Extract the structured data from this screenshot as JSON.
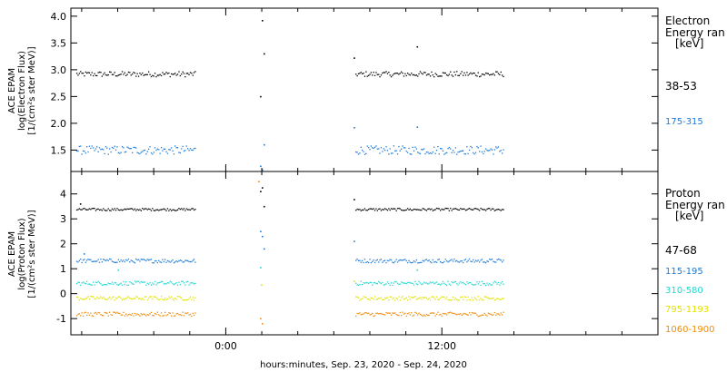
{
  "xlabel": "hours:minutes, Sep. 23, 2020 - Sep. 24, 2020",
  "x_ticks": [
    "0:00",
    "12:00"
  ],
  "colors": {
    "black": "#000000",
    "blue": "#1c7ad8",
    "cyan": "#22d8d0",
    "yellow": "#e2e200",
    "orange": "#f08c10"
  },
  "chart_data": [
    {
      "type": "scatter",
      "panel": "electron",
      "ylabel": [
        "ACE EPAM",
        "log(Electron Flux)",
        "[1/(cm²s ster MeV)]"
      ],
      "ylim": [
        1.1,
        4.15
      ],
      "y_ticks": [
        "1.5",
        "2.0",
        "2.5",
        "3.0",
        "3.5",
        "4.0"
      ],
      "legend_title": [
        "Electron",
        "Energy ran",
        "[keV]"
      ],
      "series": [
        {
          "name": "38-53",
          "color": "black",
          "level": 2.92,
          "segments": [
            [
              -8.3,
              -1.7
            ],
            [
              7.2,
              15.4
            ]
          ],
          "extra_points": [
            [
              2.0,
              3.92
            ],
            [
              2.1,
              3.3
            ],
            [
              1.9,
              2.5
            ],
            [
              7.1,
              3.22
            ],
            [
              10.6,
              3.43
            ]
          ]
        },
        {
          "name": "175-315",
          "color": "blue",
          "level": 1.5,
          "segments": [
            [
              -8.3,
              -1.7
            ],
            [
              7.2,
              15.4
            ]
          ],
          "extra_points": [
            [
              2.1,
              1.6
            ],
            [
              1.9,
              1.2
            ],
            [
              2.0,
              1.13
            ],
            [
              7.1,
              1.92
            ],
            [
              10.6,
              1.93
            ]
          ]
        }
      ]
    },
    {
      "type": "scatter",
      "panel": "proton",
      "ylabel": [
        "ACE EPAM",
        "log(Proton Flux)",
        "[1/(cm²s ster MeV)]"
      ],
      "ylim": [
        -1.65,
        4.9
      ],
      "y_ticks": [
        "-1",
        "0",
        "1",
        "2",
        "3",
        "4"
      ],
      "legend_title": [
        "Proton",
        "Energy ran",
        "[keV]"
      ],
      "series": [
        {
          "name": "47-68",
          "color": "black",
          "level": 3.38,
          "segments": [
            [
              -8.3,
              -1.7
            ],
            [
              7.2,
              15.4
            ]
          ],
          "extra_points": [
            [
              1.9,
              4.1
            ],
            [
              2.0,
              4.25
            ],
            [
              2.1,
              3.5
            ],
            [
              7.1,
              3.78
            ],
            [
              -8.1,
              3.6
            ]
          ]
        },
        {
          "name": "115-195",
          "color": "blue",
          "level": 1.32,
          "segments": [
            [
              -8.3,
              -1.7
            ],
            [
              7.2,
              15.4
            ]
          ],
          "extra_points": [
            [
              1.9,
              2.5
            ],
            [
              2.0,
              2.3
            ],
            [
              2.1,
              1.8
            ],
            [
              7.1,
              2.1
            ],
            [
              -7.9,
              1.6
            ]
          ]
        },
        {
          "name": "310-580",
          "color": "cyan",
          "level": 0.42,
          "segments": [
            [
              -8.3,
              -1.7
            ],
            [
              7.2,
              15.4
            ]
          ],
          "extra_points": [
            [
              1.9,
              1.05
            ],
            [
              10.6,
              0.95
            ],
            [
              -6.0,
              0.95
            ]
          ]
        },
        {
          "name": "795-1193",
          "color": "yellow",
          "level": -0.18,
          "segments": [
            [
              -8.3,
              -1.7
            ],
            [
              7.2,
              15.4
            ]
          ],
          "extra_points": [
            [
              1.95,
              0.35
            ],
            [
              7.1,
              0.5
            ]
          ]
        },
        {
          "name": "1060-1900",
          "color": "orange",
          "level": -0.82,
          "segments": [
            [
              -8.3,
              -1.7
            ],
            [
              7.2,
              15.4
            ]
          ],
          "extra_points": [
            [
              2.0,
              -1.2
            ],
            [
              1.9,
              -1.0
            ],
            [
              1.8,
              4.5
            ]
          ]
        }
      ]
    }
  ],
  "x_range_hours": [
    -8.6,
    24.0
  ]
}
